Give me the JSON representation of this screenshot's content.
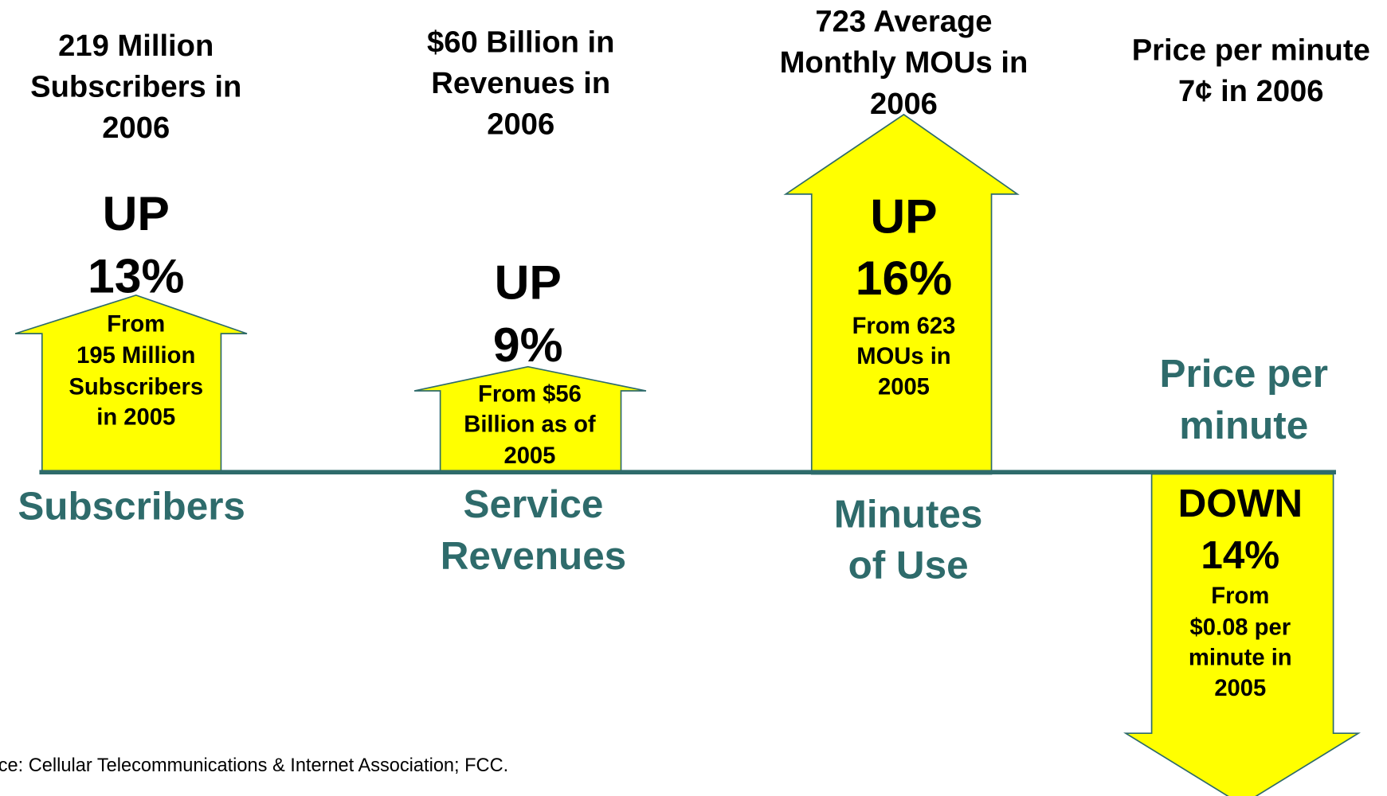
{
  "panels": [
    {
      "headline": [
        "219 Million",
        "Subscribers in",
        "2006"
      ],
      "change": [
        "UP",
        "13%"
      ],
      "from": [
        "From",
        "195 Million",
        "Subscribers",
        "in 2005"
      ],
      "label": [
        "Subscribers"
      ]
    },
    {
      "headline": [
        "$60 Billion in",
        "Revenues in",
        "2006"
      ],
      "change": [
        "UP",
        "9%"
      ],
      "from": [
        "From $56",
        "Billion as of",
        "2005"
      ],
      "label": [
        "Service",
        "Revenues"
      ]
    },
    {
      "headline": [
        "723 Average",
        "Monthly MOUs in",
        "2006"
      ],
      "change": [
        "UP",
        "16%"
      ],
      "from": [
        "From 623",
        "MOUs in",
        "2005"
      ],
      "label": [
        "Minutes",
        "of Use"
      ]
    },
    {
      "headline": [
        "Price per minute",
        "7¢ in 2006"
      ],
      "change": [
        "DOWN",
        "14%"
      ],
      "from": [
        "From",
        "$0.08 per",
        "minute in",
        "2005"
      ],
      "label": [
        "Price per",
        "minute"
      ]
    }
  ],
  "source": "ce: Cellular Telecommunications & Internet Association; FCC."
}
